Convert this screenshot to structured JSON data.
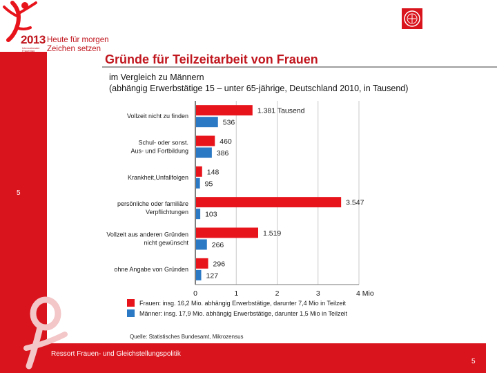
{
  "branding": {
    "year": "2013",
    "slogan_line1": "Heute für morgen",
    "slogan_line2": "Zeichen setzen",
    "tiny_line1": "Internationaler",
    "tiny_line2": "Frauentag"
  },
  "header": {
    "title": "Gründe für Teilzeitarbeit von Frauen",
    "subtitle_line1": "im Vergleich zu Männern",
    "subtitle_line2": "(abhängig Erwerbstätige 15 – unter 65-jährige, Deutschland 2010, in Tausend)"
  },
  "footer": {
    "department": "Ressort Frauen- und Gleichstellungspolitik",
    "page_left": "5",
    "page_right": "5"
  },
  "source": "Quelle: Statistisches Bundesamt, Mikrozensus",
  "colors": {
    "brand_red": "#d9141d",
    "women_bar": "#e8141c",
    "men_bar": "#2b78c4"
  },
  "chart_data": {
    "type": "bar",
    "orientation": "horizontal",
    "unit": "Tausend",
    "categories": [
      [
        "Vollzeit nicht zu finden"
      ],
      [
        "Schul- oder sonst.",
        "Aus- und Fortbildung"
      ],
      [
        "Krankheit,Unfallfolgen"
      ],
      [
        "persönliche oder familiäre",
        "Verpflichtungen"
      ],
      [
        "Vollzeit aus anderen Gründen",
        "nicht gewünscht"
      ],
      [
        "ohne Angabe von Gründen"
      ]
    ],
    "series": [
      {
        "name": "Frauen: insg. 16,2 Mio. abhängig Erwerbstätige, darunter 7,4 Mio in Teilzeit",
        "color": "#e8141c",
        "values": [
          1381,
          460,
          148,
          3547,
          1519,
          296
        ],
        "labels": [
          "1.381 Tausend",
          "460",
          "148",
          "3.547",
          "1.519",
          "296"
        ]
      },
      {
        "name": "Männer: insg. 17,9 Mio. abhängig Erwerbstätige, darunter 1,5 Mio in Teilzeit",
        "color": "#2b78c4",
        "values": [
          536,
          386,
          95,
          103,
          266,
          127
        ],
        "labels": [
          "536",
          "386",
          "95",
          "103",
          "266",
          "127"
        ]
      }
    ],
    "x_ticks": [
      0,
      1000,
      2000,
      3000,
      4000
    ],
    "x_tick_labels": [
      "0",
      "1",
      "2",
      "3",
      "4 Mio"
    ],
    "xlim": [
      0,
      4000
    ],
    "grid": true
  }
}
